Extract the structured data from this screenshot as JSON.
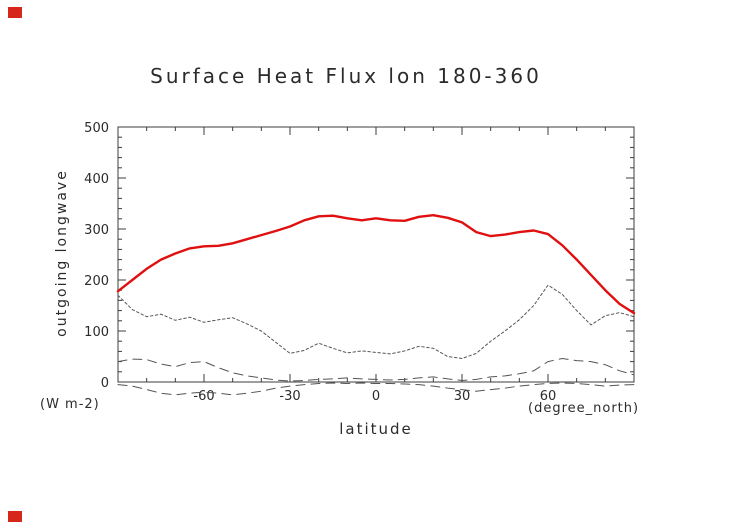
{
  "markers": {
    "color": "#d6281a"
  },
  "chart_data": {
    "type": "line",
    "title": "Surface Heat Flux lon 180-360",
    "xlabel": "latitude",
    "ylabel": "outgoing longwave",
    "y_unit_label": "(W m-2)",
    "x_unit_label": "(degree_north)",
    "xlim": [
      -90,
      90
    ],
    "ylim": [
      0,
      500
    ],
    "xticks": [
      -60,
      -30,
      0,
      30,
      60
    ],
    "yticks": [
      0,
      100,
      200,
      300,
      400,
      500
    ],
    "x_minor_step": 10,
    "y_minor_step": 20,
    "grid": false,
    "legend": "none",
    "x": [
      -90,
      -85,
      -80,
      -75,
      -70,
      -65,
      -60,
      -55,
      -50,
      -45,
      -40,
      -35,
      -30,
      -25,
      -20,
      -15,
      -10,
      -5,
      0,
      5,
      10,
      15,
      20,
      25,
      30,
      35,
      40,
      45,
      50,
      55,
      60,
      65,
      70,
      75,
      80,
      85,
      90
    ],
    "series": [
      {
        "name": "outgoing longwave (solid red)",
        "color": "#e01010",
        "width": 2.4,
        "dash": "",
        "values": [
          178,
          200,
          222,
          240,
          252,
          262,
          266,
          267,
          272,
          280,
          288,
          296,
          305,
          317,
          325,
          326,
          321,
          317,
          321,
          317,
          316,
          324,
          327,
          322,
          313,
          294,
          286,
          289,
          294,
          297,
          290,
          268,
          240,
          210,
          180,
          153,
          135
        ]
      },
      {
        "name": "short-dash series",
        "color": "#555555",
        "width": 1,
        "dash": "2.5,2.5",
        "values": [
          170,
          142,
          128,
          133,
          121,
          127,
          117,
          122,
          126,
          114,
          100,
          78,
          56,
          62,
          76,
          66,
          57,
          61,
          58,
          55,
          61,
          70,
          66,
          50,
          46,
          56,
          80,
          100,
          122,
          150,
          190,
          172,
          140,
          112,
          130,
          136,
          128
        ]
      },
      {
        "name": "long-dash series",
        "color": "#555555",
        "width": 1,
        "dash": "9,6",
        "values": [
          40,
          45,
          44,
          35,
          30,
          38,
          40,
          28,
          18,
          12,
          8,
          4,
          2,
          3,
          5,
          6,
          8,
          6,
          5,
          4,
          5,
          8,
          10,
          6,
          3,
          5,
          10,
          12,
          16,
          22,
          40,
          46,
          42,
          40,
          34,
          22,
          14
        ]
      },
      {
        "name": "long-dash negative series",
        "color": "#555555",
        "width": 1,
        "dash": "9,6",
        "values": [
          -5,
          -8,
          -15,
          -22,
          -25,
          -22,
          -20,
          -22,
          -25,
          -22,
          -18,
          -12,
          -8,
          -5,
          -3,
          -2,
          -3,
          -2,
          -3,
          -3,
          -4,
          -5,
          -8,
          -12,
          -15,
          -18,
          -15,
          -12,
          -8,
          -5,
          -3,
          -2,
          -3,
          -5,
          -8,
          -6,
          -5
        ]
      }
    ]
  }
}
